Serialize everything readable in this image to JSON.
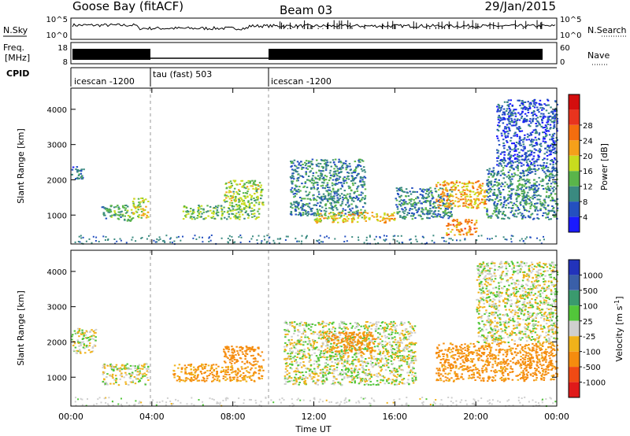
{
  "header": {
    "site": "Goose Bay (fitACF)",
    "beam": "Beam 03",
    "date": "29/Jan/2015"
  },
  "top_panels": {
    "nsky_label": "N.Sky",
    "nsearch_label": "N.Search",
    "noise_ticks": [
      "10^5",
      "10^0"
    ],
    "freq_label_1": "Freq.",
    "freq_label_2": "[MHz]",
    "freq_ticks": [
      "18",
      "8"
    ],
    "nave_label": "Nave",
    "nave_ticks": [
      "60",
      "0"
    ],
    "cpid_label": "CPID",
    "cpid_segments": [
      {
        "label": "icescan -1200",
        "start_hour": 0,
        "end_hour": 4
      },
      {
        "label": "tau (fast) 503",
        "start_hour": 4,
        "end_hour": 10
      },
      {
        "label": "icescan -1200",
        "start_hour": 10,
        "end_hour": 24
      }
    ]
  },
  "axes": {
    "xlabel": "Time UT",
    "ylabel": "Slant Range [km]",
    "x_ticks": [
      "00:00",
      "04:00",
      "08:00",
      "12:00",
      "16:00",
      "20:00",
      "00:00"
    ],
    "x_tick_hours": [
      0,
      4,
      8,
      12,
      16,
      20,
      24
    ],
    "y_ticks": [
      "1000",
      "2000",
      "3000",
      "4000"
    ],
    "y_tick_values": [
      1000,
      2000,
      3000,
      4000
    ],
    "ylim": [
      180,
      4600
    ],
    "xlim": [
      0,
      24
    ]
  },
  "colorbars": {
    "power": {
      "label": "Power [dB]",
      "tick_labels": [
        "4",
        "8",
        "12",
        "16",
        "20",
        "24",
        "28"
      ],
      "colors": [
        "#1a1aff",
        "#2450c0",
        "#3a8a80",
        "#5ab54a",
        "#c8dc1e",
        "#f5a01a",
        "#f46d0e",
        "#e8341e",
        "#d40e0e"
      ]
    },
    "velocity": {
      "label": "Velocity [m s",
      "label_sup": "-1",
      "label_end": "]",
      "tick_labels": [
        "1000",
        "500",
        "100",
        "25",
        "-25",
        "-100",
        "-500",
        "-1000"
      ],
      "colors": [
        "#2233bb",
        "#3a5fa8",
        "#3a9a6e",
        "#52c63a",
        "#cfcfcf",
        "#f0b21a",
        "#f58c0e",
        "#f04a14",
        "#e01a1a"
      ]
    }
  },
  "chart_data": [
    {
      "type": "heatmap",
      "title": "Power",
      "xlabel": "Time UT",
      "ylabel": "Slant Range [km]",
      "xlim": [
        0,
        24
      ],
      "ylim": [
        180,
        4600
      ],
      "colorbar_label": "Power [dB]",
      "colorbar_ticks": [
        4,
        8,
        12,
        16,
        20,
        24,
        28
      ],
      "regions": [
        {
          "t_start": 0.0,
          "t_end": 0.6,
          "r_start": 2000,
          "r_end": 2400,
          "power_db": 8
        },
        {
          "t_start": 1.5,
          "t_end": 3.0,
          "r_start": 850,
          "r_end": 1300,
          "power_db": 12
        },
        {
          "t_start": 3.0,
          "t_end": 3.8,
          "r_start": 900,
          "r_end": 1500,
          "power_db": 18
        },
        {
          "t_start": 5.5,
          "t_end": 9.3,
          "r_start": 900,
          "r_end": 1300,
          "power_db": 14
        },
        {
          "t_start": 7.5,
          "t_end": 9.5,
          "r_start": 1300,
          "r_end": 2000,
          "power_db": 16
        },
        {
          "t_start": 10.8,
          "t_end": 14.5,
          "r_start": 1000,
          "r_end": 2600,
          "power_db": 10
        },
        {
          "t_start": 12.0,
          "t_end": 16.0,
          "r_start": 800,
          "r_end": 1100,
          "power_db": 20
        },
        {
          "t_start": 16.0,
          "t_end": 18.8,
          "r_start": 900,
          "r_end": 1800,
          "power_db": 10
        },
        {
          "t_start": 18.0,
          "t_end": 20.5,
          "r_start": 1200,
          "r_end": 2000,
          "power_db": 22
        },
        {
          "t_start": 18.5,
          "t_end": 20.0,
          "r_start": 450,
          "r_end": 900,
          "power_db": 24
        },
        {
          "t_start": 20.5,
          "t_end": 24.0,
          "r_start": 900,
          "r_end": 2400,
          "power_db": 10
        },
        {
          "t_start": 21.0,
          "t_end": 24.0,
          "r_start": 2400,
          "r_end": 4300,
          "power_db": 6
        }
      ]
    },
    {
      "type": "heatmap",
      "title": "Velocity",
      "xlabel": "Time UT",
      "ylabel": "Slant Range [km]",
      "xlim": [
        0,
        24
      ],
      "ylim": [
        180,
        4600
      ],
      "colorbar_label": "Velocity [m s-1]",
      "colorbar_ticks": [
        1000,
        500,
        100,
        25,
        -25,
        -100,
        -500,
        -1000
      ],
      "regions": [
        {
          "t_start": 0.0,
          "t_end": 1.2,
          "r_start": 1700,
          "r_end": 2400,
          "velocity": 0
        },
        {
          "t_start": 1.5,
          "t_end": 3.8,
          "r_start": 800,
          "r_end": 1400,
          "velocity": 0
        },
        {
          "t_start": 5.0,
          "t_end": 9.5,
          "r_start": 900,
          "r_end": 1400,
          "velocity": -120
        },
        {
          "t_start": 7.5,
          "t_end": 9.5,
          "r_start": 1400,
          "r_end": 1900,
          "velocity": -200
        },
        {
          "t_start": 10.5,
          "t_end": 17.0,
          "r_start": 800,
          "r_end": 2600,
          "velocity": 0
        },
        {
          "t_start": 12.5,
          "t_end": 15.0,
          "r_start": 1700,
          "r_end": 2300,
          "velocity": -150
        },
        {
          "t_start": 18.0,
          "t_end": 24.0,
          "r_start": 900,
          "r_end": 2000,
          "velocity": -150
        },
        {
          "t_start": 20.0,
          "t_end": 24.0,
          "r_start": 2000,
          "r_end": 4300,
          "velocity": 0
        }
      ]
    }
  ]
}
